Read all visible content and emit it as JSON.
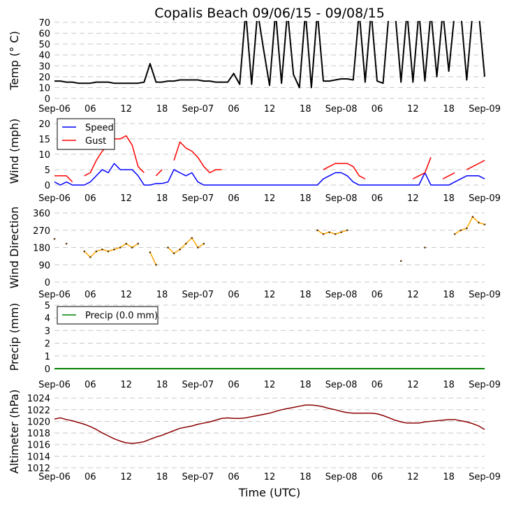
{
  "chart_data": [
    {
      "type": "line",
      "title": "Copalis Beach 09/06/15 - 09/08/15",
      "ylabel": "Temp ($^\\circ$C)",
      "ylabel_display": "Temp (° C)",
      "ylim": [
        0,
        70
      ],
      "yticks": [
        "0",
        "10",
        "20",
        "30",
        "40",
        "50",
        "60",
        "70"
      ],
      "x_hours": "0..72 hourly from Sep-06 00:00 UTC",
      "xticks": [
        "Sep-06",
        "06",
        "12",
        "18",
        "Sep-07",
        "06",
        "12",
        "18",
        "Sep-08",
        "06",
        "12",
        "18",
        "Sep-09"
      ],
      "grid": true,
      "series": [
        {
          "name": "Temperature",
          "color": "#000000",
          "values": [
            16,
            16,
            15,
            15,
            14,
            14,
            14,
            15,
            15,
            15,
            14,
            14,
            14,
            14,
            14,
            15,
            32,
            15,
            15,
            16,
            16,
            17,
            17,
            17,
            17,
            16,
            16,
            15,
            15,
            15,
            23,
            13,
            80,
            13,
            80,
            45,
            12,
            80,
            14,
            80,
            22,
            10,
            80,
            10,
            80,
            16,
            16,
            17,
            18,
            18,
            17,
            80,
            15,
            80,
            16,
            14,
            80,
            80,
            15,
            80,
            15,
            80,
            16,
            80,
            20,
            80,
            25,
            80,
            80,
            17,
            80,
            80,
            20
          ]
        }
      ]
    },
    {
      "type": "line",
      "ylabel": "Wind (mph)",
      "ylim": [
        0,
        22
      ],
      "yticks": [
        "0",
        "5",
        "10",
        "15",
        "20"
      ],
      "xticks": [
        "Sep-06",
        "06",
        "12",
        "18",
        "Sep-07",
        "06",
        "12",
        "18",
        "Sep-08",
        "06",
        "12",
        "18",
        "Sep-09"
      ],
      "grid": true,
      "legend": {
        "placement": "upper-left",
        "entries": [
          "Speed",
          "Gust"
        ]
      },
      "series": [
        {
          "name": "Speed",
          "color": "#0000ff",
          "values": [
            1,
            0,
            1,
            0,
            0,
            0,
            1,
            3,
            5,
            4,
            7,
            5,
            5,
            5,
            3,
            0,
            0,
            0.5,
            0.5,
            1,
            5,
            4,
            3,
            4,
            1,
            0,
            0,
            0,
            0,
            0,
            0,
            0,
            0,
            0,
            0,
            0,
            0,
            0,
            0,
            0,
            0,
            0,
            0,
            0,
            0,
            2,
            3,
            4,
            4,
            3,
            1,
            0,
            0,
            0,
            0,
            0,
            0,
            0,
            0,
            0,
            0,
            0,
            4,
            0,
            0,
            0,
            0,
            1,
            2,
            3,
            3,
            3,
            2
          ]
        },
        {
          "name": "Gust",
          "color": "#ff0000",
          "values": [
            3,
            3,
            3,
            1,
            null,
            3,
            4,
            8,
            11,
            13,
            15,
            15,
            16,
            13,
            6,
            4,
            null,
            3,
            5,
            null,
            8,
            14,
            12,
            11,
            9,
            6,
            4,
            5,
            5,
            null,
            5,
            null,
            null,
            null,
            null,
            null,
            null,
            null,
            null,
            null,
            null,
            null,
            null,
            null,
            null,
            5,
            6,
            7,
            7,
            7,
            6,
            3,
            2,
            null,
            null,
            null,
            null,
            null,
            null,
            null,
            2,
            3,
            4,
            9,
            null,
            2,
            3,
            4,
            null,
            5,
            6,
            7,
            8
          ]
        }
      ]
    },
    {
      "type": "scatter",
      "ylabel": "Wind Direction",
      "ylim": [
        0,
        360
      ],
      "yticks": [
        "0",
        "90",
        "180",
        "270",
        "360"
      ],
      "xticks": [
        "Sep-06",
        "06",
        "12",
        "18",
        "Sep-07",
        "06",
        "12",
        "18",
        "Sep-08",
        "06",
        "12",
        "18",
        "Sep-09"
      ],
      "grid": true,
      "series": [
        {
          "name": "Direction",
          "color": "#ffa500",
          "values": [
            225,
            null,
            200,
            null,
            null,
            160,
            130,
            160,
            170,
            160,
            170,
            180,
            200,
            180,
            200,
            null,
            155,
            90,
            null,
            180,
            150,
            170,
            200,
            230,
            180,
            200,
            null,
            null,
            null,
            null,
            null,
            null,
            null,
            null,
            null,
            null,
            null,
            null,
            null,
            null,
            null,
            null,
            null,
            null,
            270,
            250,
            260,
            250,
            260,
            270,
            null,
            null,
            null,
            null,
            null,
            null,
            null,
            null,
            110,
            null,
            null,
            null,
            180,
            null,
            null,
            null,
            null,
            250,
            270,
            280,
            340,
            310,
            300
          ]
        }
      ]
    },
    {
      "type": "line",
      "ylabel": "Precip (mm)",
      "ylim": [
        0,
        5
      ],
      "yticks": [
        "0",
        "1",
        "2",
        "3",
        "4",
        "5"
      ],
      "xticks": [
        "Sep-06",
        "06",
        "12",
        "18",
        "Sep-07",
        "06",
        "12",
        "18",
        "Sep-08",
        "06",
        "12",
        "18",
        "Sep-09"
      ],
      "grid": true,
      "legend": {
        "placement": "upper-left",
        "entries": [
          "Precip (0.0 mm)"
        ]
      },
      "series": [
        {
          "name": "Precip",
          "color": "#008000",
          "values": [
            0,
            0,
            0,
            0,
            0,
            0,
            0,
            0,
            0,
            0,
            0,
            0,
            0,
            0,
            0,
            0,
            0,
            0,
            0,
            0,
            0,
            0,
            0,
            0,
            0,
            0,
            0,
            0,
            0,
            0,
            0,
            0,
            0,
            0,
            0,
            0,
            0,
            0,
            0,
            0,
            0,
            0,
            0,
            0,
            0,
            0,
            0,
            0,
            0,
            0,
            0,
            0,
            0,
            0,
            0,
            0,
            0,
            0,
            0,
            0,
            0,
            0,
            0,
            0,
            0,
            0,
            0,
            0,
            0,
            0,
            0,
            0,
            0
          ]
        }
      ]
    },
    {
      "type": "line",
      "ylabel": "Altimeter (hPa)",
      "xlabel": "Time (UTC)",
      "ylim": [
        1012,
        1024.5
      ],
      "yticks": [
        "1012",
        "1014",
        "1016",
        "1018",
        "1020",
        "1022",
        "1024"
      ],
      "xticks": [
        "Sep-06",
        "06",
        "12",
        "18",
        "Sep-07",
        "06",
        "12",
        "18",
        "Sep-08",
        "06",
        "12",
        "18",
        "Sep-09"
      ],
      "grid": true,
      "series": [
        {
          "name": "Altimeter",
          "color": "#8b0000",
          "values": [
            1020.4,
            1020.6,
            1020.3,
            1020.1,
            1019.8,
            1019.5,
            1019.1,
            1018.6,
            1018.0,
            1017.5,
            1017.0,
            1016.6,
            1016.3,
            1016.2,
            1016.3,
            1016.5,
            1016.9,
            1017.3,
            1017.6,
            1018.0,
            1018.4,
            1018.8,
            1019.0,
            1019.2,
            1019.5,
            1019.7,
            1019.9,
            1020.2,
            1020.5,
            1020.6,
            1020.5,
            1020.5,
            1020.6,
            1020.8,
            1021.0,
            1021.2,
            1021.4,
            1021.7,
            1022.0,
            1022.2,
            1022.4,
            1022.6,
            1022.8,
            1022.8,
            1022.7,
            1022.5,
            1022.2,
            1022.0,
            1021.7,
            1021.5,
            1021.4,
            1021.4,
            1021.4,
            1021.4,
            1021.3,
            1021.0,
            1020.6,
            1020.2,
            1019.9,
            1019.7,
            1019.7,
            1019.7,
            1019.9,
            1020.0,
            1020.1,
            1020.2,
            1020.3,
            1020.3,
            1020.1,
            1019.9,
            1019.6,
            1019.2,
            1018.6
          ]
        }
      ]
    }
  ]
}
